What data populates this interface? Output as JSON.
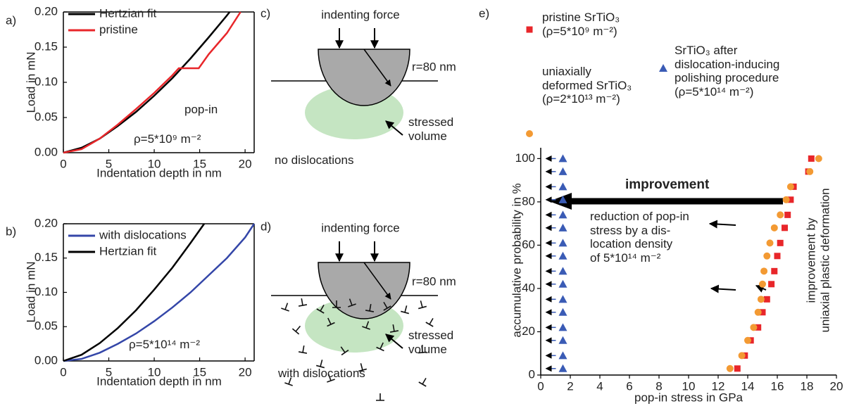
{
  "chart_data": [
    {
      "type": "line",
      "label": "a)",
      "xlabel": "Indentation depth in nm",
      "ylabel": "Load in mN",
      "xlim": [
        0,
        21
      ],
      "ylim": [
        0,
        0.2
      ],
      "xticks": [
        0,
        5,
        10,
        15,
        20
      ],
      "yticks": [
        {
          "value": 0,
          "label": "0.00"
        },
        0.05,
        {
          "value": 0.1,
          "label": "0.10"
        },
        0.15,
        {
          "value": 0.2,
          "label": "0.20"
        }
      ],
      "legend": "upper left",
      "series": [
        {
          "name": "Hertzian fit",
          "color": "#000000",
          "x": [
            0,
            2,
            4,
            6,
            8,
            10,
            12,
            14,
            16,
            18,
            18.3
          ],
          "values": [
            0,
            0.007,
            0.02,
            0.038,
            0.058,
            0.081,
            0.106,
            0.134,
            0.164,
            0.195,
            0.2
          ]
        },
        {
          "name": "pristine",
          "color": "#e8262a",
          "x": [
            0,
            2,
            4,
            6,
            8,
            10,
            12,
            12.7,
            14.9,
            16,
            17,
            18,
            19,
            19.5
          ],
          "values": [
            0,
            0.005,
            0.02,
            0.04,
            0.062,
            0.085,
            0.11,
            0.12,
            0.12,
            0.14,
            0.155,
            0.17,
            0.19,
            0.2
          ]
        }
      ],
      "annotations": [
        "pop-in",
        "ρ=5*10⁹ m⁻²"
      ]
    },
    {
      "type": "line",
      "label": "b)",
      "xlabel": "Indentation depth in nm",
      "ylabel": "Load in mN",
      "xlim": [
        0,
        21
      ],
      "ylim": [
        0,
        0.2
      ],
      "xticks": [
        0,
        5,
        10,
        15,
        20
      ],
      "yticks": [
        {
          "value": 0,
          "label": "0.00"
        },
        0.05,
        {
          "value": 0.1,
          "label": "0.10"
        },
        0.15,
        {
          "value": 0.2,
          "label": "0.20"
        }
      ],
      "legend": "upper left",
      "series": [
        {
          "name": "with dislocations",
          "color": "#3446a8",
          "x": [
            0,
            2,
            4,
            6,
            8,
            10,
            12,
            14,
            16,
            18,
            20,
            21
          ],
          "values": [
            0,
            0.003,
            0.012,
            0.025,
            0.04,
            0.058,
            0.078,
            0.1,
            0.125,
            0.15,
            0.18,
            0.2
          ]
        },
        {
          "name": "Hertzian fit",
          "color": "#000000",
          "x": [
            0,
            2,
            4,
            6,
            8,
            10,
            12,
            14,
            15.5
          ],
          "values": [
            0,
            0.009,
            0.026,
            0.048,
            0.074,
            0.104,
            0.136,
            0.172,
            0.2
          ]
        }
      ],
      "annotations": [
        "ρ=5*10¹⁴ m⁻²"
      ]
    },
    {
      "type": "scatter",
      "label": "e)",
      "xlabel": "pop-in stress in GPa",
      "ylabel": "accumulative probability in %",
      "xlim": [
        0,
        20
      ],
      "ylim": [
        0,
        105
      ],
      "xticks": [
        0,
        2,
        4,
        6,
        8,
        10,
        12,
        14,
        16,
        18,
        20
      ],
      "yticks": [
        0,
        20,
        40,
        60,
        80,
        100
      ],
      "series": [
        {
          "name": "pristine SrTiO₃\n(ρ=5*10⁹ m⁻²)",
          "color": "#e8262a",
          "marker": "square",
          "x": [
            13.3,
            13.8,
            14.2,
            14.7,
            15.0,
            15.3,
            15.6,
            15.8,
            16.0,
            16.2,
            16.5,
            16.7,
            16.9,
            17.1,
            18.1,
            18.3
          ],
          "values": [
            3,
            9,
            16,
            22,
            29,
            35,
            42,
            48,
            55,
            61,
            68,
            74,
            81,
            87,
            94,
            100
          ]
        },
        {
          "name": "uniaxially\ndeformed SrTiO₃\n(ρ=2*10¹³ m⁻²)",
          "color": "#f39a33",
          "marker": "circle",
          "x": [
            12.8,
            13.6,
            14.0,
            14.4,
            14.7,
            14.9,
            15.0,
            15.1,
            15.3,
            15.5,
            15.8,
            16.2,
            16.6,
            16.9,
            18.2,
            18.8
          ],
          "values": [
            3,
            9,
            16,
            22,
            29,
            35,
            42,
            48,
            55,
            61,
            68,
            74,
            81,
            87,
            94,
            100
          ]
        },
        {
          "name": "SrTiO₃ after\ndislocation-inducing\npolishing procedure\n(ρ=5*10¹⁴ m⁻²)",
          "color": "#3a5bb5",
          "marker": "triangle",
          "x": [
            1.5,
            1.5,
            1.5,
            1.5,
            1.5,
            1.5,
            1.5,
            1.5,
            1.5,
            1.5,
            1.5,
            1.5,
            1.5,
            1.5,
            1.5,
            1.5
          ],
          "values": [
            3,
            9,
            16,
            22,
            29,
            35,
            42,
            48,
            55,
            61,
            68,
            74,
            81,
            87,
            94,
            100
          ]
        }
      ],
      "annotations": [
        "improvement",
        "reduction of pop-in\nstress by a dis-\nlocation density\nof 5*10¹⁴ m⁻²",
        "improvement by\nuniaxial plastic deformation"
      ]
    }
  ],
  "diagrams": [
    {
      "label": "c)",
      "force": "indenting force",
      "radius": "r=80 nm",
      "volume": "stressed\nvolume",
      "caption": "no dislocations"
    },
    {
      "label": "d)",
      "force": "indenting force",
      "radius": "r=80 nm",
      "volume": "stressed\nvolume",
      "caption": "with dislocations"
    }
  ]
}
